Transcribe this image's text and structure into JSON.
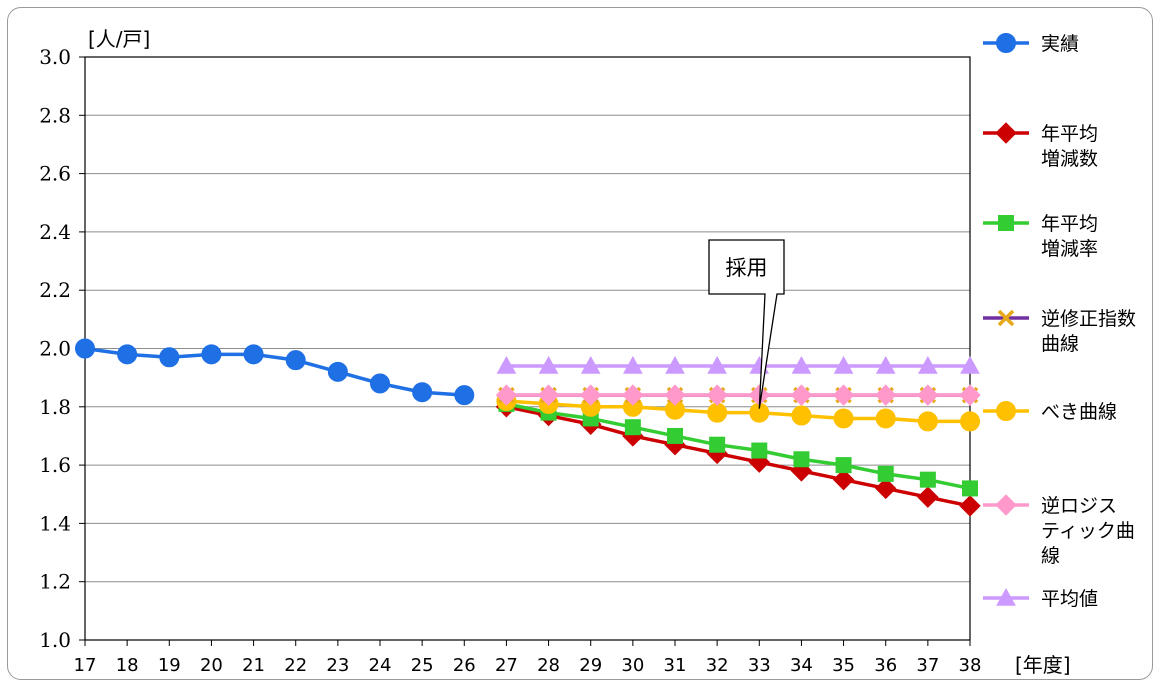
{
  "chart_data": {
    "type": "line",
    "y_unit": "[人/戸]",
    "x_unit": "[年度]",
    "ylim": [
      1.0,
      3.0
    ],
    "y_ticks": [
      "1.0",
      "1.2",
      "1.4",
      "1.6",
      "1.8",
      "2.0",
      "2.2",
      "2.4",
      "2.6",
      "2.8",
      "3.0"
    ],
    "x": [
      "17",
      "18",
      "19",
      "20",
      "21",
      "22",
      "23",
      "24",
      "25",
      "26",
      "27",
      "28",
      "29",
      "30",
      "31",
      "32",
      "33",
      "34",
      "35",
      "36",
      "37",
      "38"
    ],
    "grid": "horizontal",
    "legend_position": "right",
    "annotation": {
      "text": "採用",
      "points_to": {
        "series": "べき曲線",
        "x": "33"
      }
    },
    "series": [
      {
        "name": "実績",
        "legend_lines": [
          "実績"
        ],
        "color": "#1f6fe5",
        "marker": "circle",
        "x": [
          "17",
          "18",
          "19",
          "20",
          "21",
          "22",
          "23",
          "24",
          "25",
          "26"
        ],
        "values": [
          2.0,
          1.98,
          1.97,
          1.98,
          1.98,
          1.96,
          1.92,
          1.88,
          1.85,
          1.84
        ]
      },
      {
        "name": "年平均増減数",
        "legend_lines": [
          "年平均",
          "増減数"
        ],
        "color": "#cc0000",
        "marker": "diamond",
        "x": [
          "27",
          "28",
          "29",
          "30",
          "31",
          "32",
          "33",
          "34",
          "35",
          "36",
          "37",
          "38"
        ],
        "values": [
          1.8,
          1.77,
          1.74,
          1.7,
          1.67,
          1.64,
          1.61,
          1.58,
          1.55,
          1.52,
          1.49,
          1.46
        ]
      },
      {
        "name": "年平均増減率",
        "legend_lines": [
          "年平均",
          "増減率"
        ],
        "color": "#33cc33",
        "marker": "square",
        "x": [
          "27",
          "28",
          "29",
          "30",
          "31",
          "32",
          "33",
          "34",
          "35",
          "36",
          "37",
          "38"
        ],
        "values": [
          1.81,
          1.78,
          1.76,
          1.73,
          1.7,
          1.67,
          1.65,
          1.62,
          1.6,
          1.57,
          1.55,
          1.52
        ]
      },
      {
        "name": "逆修正指数曲線",
        "legend_lines": [
          "逆修正指数",
          "曲線"
        ],
        "color": "#7030a0",
        "marker_color": "#e6a817",
        "marker": "x",
        "x": [
          "27",
          "28",
          "29",
          "30",
          "31",
          "32",
          "33",
          "34",
          "35",
          "36",
          "37",
          "38"
        ],
        "values": [
          1.84,
          1.84,
          1.84,
          1.84,
          1.84,
          1.84,
          1.84,
          1.84,
          1.84,
          1.84,
          1.84,
          1.84
        ]
      },
      {
        "name": "べき曲線",
        "legend_lines": [
          "べき曲線"
        ],
        "color": "#ffc000",
        "marker": "circle",
        "x": [
          "27",
          "28",
          "29",
          "30",
          "31",
          "32",
          "33",
          "34",
          "35",
          "36",
          "37",
          "38"
        ],
        "values": [
          1.82,
          1.81,
          1.8,
          1.8,
          1.79,
          1.78,
          1.78,
          1.77,
          1.76,
          1.76,
          1.75,
          1.75
        ]
      },
      {
        "name": "逆ロジスティック曲線",
        "legend_lines": [
          "逆ロジス",
          "ティック曲",
          "線"
        ],
        "color": "#ff99cc",
        "marker": "diamond",
        "x": [
          "27",
          "28",
          "29",
          "30",
          "31",
          "32",
          "33",
          "34",
          "35",
          "36",
          "37",
          "38"
        ],
        "values": [
          1.84,
          1.84,
          1.84,
          1.84,
          1.84,
          1.84,
          1.84,
          1.84,
          1.84,
          1.84,
          1.84,
          1.84
        ]
      },
      {
        "name": "平均値",
        "legend_lines": [
          "平均値"
        ],
        "color": "#cc99ff",
        "marker": "triangle",
        "x": [
          "27",
          "28",
          "29",
          "30",
          "31",
          "32",
          "33",
          "34",
          "35",
          "36",
          "37",
          "38"
        ],
        "values": [
          1.94,
          1.94,
          1.94,
          1.94,
          1.94,
          1.94,
          1.94,
          1.94,
          1.94,
          1.94,
          1.94,
          1.94
        ]
      }
    ]
  }
}
